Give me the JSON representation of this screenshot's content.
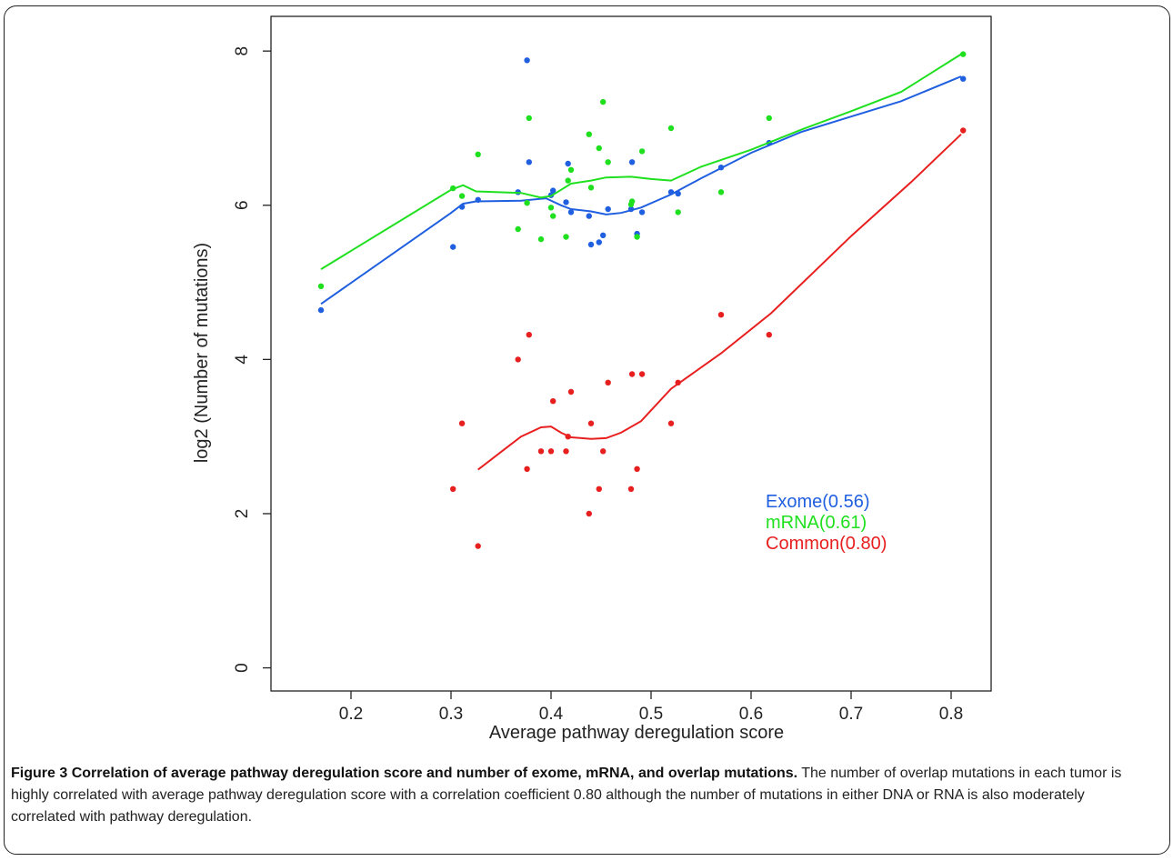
{
  "caption": {
    "label": "Figure 3",
    "title": "Correlation of average pathway deregulation score and number of exome, mRNA, and overlap mutations.",
    "text": "The number of overlap mutations in each tumor is highly correlated with average pathway deregulation score with a correlation coefficient 0.80 although the number of mutations in either DNA or RNA is also moderately correlated with pathway deregulation."
  },
  "chart_data": {
    "type": "scatter",
    "xlabel": "Average pathway deregulation score",
    "ylabel": "log2 (Number of mutations)",
    "xlim": [
      0.12,
      0.84
    ],
    "ylim": [
      -0.3,
      8.45
    ],
    "xticks": [
      0.2,
      0.3,
      0.4,
      0.5,
      0.6,
      0.7,
      0.8
    ],
    "yticks": [
      0,
      2,
      4,
      6,
      8
    ],
    "legend_position": "lower-right",
    "series": [
      {
        "name": "Exome(0.56)",
        "color": "#1f5fe0",
        "points": [
          [
            0.17,
            4.64
          ],
          [
            0.302,
            5.46
          ],
          [
            0.311,
            5.98
          ],
          [
            0.327,
            6.07
          ],
          [
            0.367,
            6.17
          ],
          [
            0.376,
            7.88
          ],
          [
            0.378,
            6.56
          ],
          [
            0.4,
            6.13
          ],
          [
            0.402,
            6.19
          ],
          [
            0.415,
            6.04
          ],
          [
            0.417,
            6.54
          ],
          [
            0.42,
            5.91
          ],
          [
            0.438,
            5.86
          ],
          [
            0.44,
            5.49
          ],
          [
            0.448,
            5.52
          ],
          [
            0.452,
            5.61
          ],
          [
            0.457,
            5.95
          ],
          [
            0.48,
            5.95
          ],
          [
            0.481,
            6.56
          ],
          [
            0.486,
            5.63
          ],
          [
            0.491,
            5.91
          ],
          [
            0.52,
            6.17
          ],
          [
            0.527,
            6.15
          ],
          [
            0.57,
            6.49
          ],
          [
            0.618,
            6.81
          ],
          [
            0.812,
            7.64
          ]
        ],
        "trend": [
          [
            0.17,
            4.72
          ],
          [
            0.3,
            5.9
          ],
          [
            0.312,
            6.02
          ],
          [
            0.325,
            6.05
          ],
          [
            0.37,
            6.06
          ],
          [
            0.395,
            6.09
          ],
          [
            0.41,
            6.0
          ],
          [
            0.42,
            5.95
          ],
          [
            0.44,
            5.92
          ],
          [
            0.455,
            5.88
          ],
          [
            0.47,
            5.9
          ],
          [
            0.49,
            5.97
          ],
          [
            0.52,
            6.14
          ],
          [
            0.55,
            6.35
          ],
          [
            0.6,
            6.68
          ],
          [
            0.65,
            6.95
          ],
          [
            0.7,
            7.15
          ],
          [
            0.75,
            7.35
          ],
          [
            0.81,
            7.67
          ]
        ]
      },
      {
        "name": "mRNA(0.61)",
        "color": "#1fe01f",
        "points": [
          [
            0.17,
            4.95
          ],
          [
            0.302,
            6.22
          ],
          [
            0.311,
            6.12
          ],
          [
            0.327,
            6.66
          ],
          [
            0.367,
            5.69
          ],
          [
            0.376,
            6.03
          ],
          [
            0.378,
            7.13
          ],
          [
            0.39,
            5.56
          ],
          [
            0.4,
            5.97
          ],
          [
            0.402,
            5.86
          ],
          [
            0.415,
            5.59
          ],
          [
            0.417,
            6.32
          ],
          [
            0.42,
            6.46
          ],
          [
            0.438,
            6.92
          ],
          [
            0.44,
            6.23
          ],
          [
            0.448,
            6.74
          ],
          [
            0.452,
            7.34
          ],
          [
            0.457,
            6.56
          ],
          [
            0.48,
            6.01
          ],
          [
            0.481,
            6.05
          ],
          [
            0.486,
            5.59
          ],
          [
            0.491,
            6.7
          ],
          [
            0.52,
            7.0
          ],
          [
            0.527,
            5.91
          ],
          [
            0.57,
            6.17
          ],
          [
            0.618,
            7.13
          ],
          [
            0.812,
            7.96
          ]
        ],
        "trend": [
          [
            0.17,
            5.17
          ],
          [
            0.3,
            6.2
          ],
          [
            0.312,
            6.26
          ],
          [
            0.325,
            6.18
          ],
          [
            0.37,
            6.16
          ],
          [
            0.39,
            6.1
          ],
          [
            0.4,
            6.12
          ],
          [
            0.41,
            6.2
          ],
          [
            0.42,
            6.28
          ],
          [
            0.44,
            6.32
          ],
          [
            0.455,
            6.36
          ],
          [
            0.48,
            6.37
          ],
          [
            0.5,
            6.34
          ],
          [
            0.52,
            6.32
          ],
          [
            0.55,
            6.5
          ],
          [
            0.6,
            6.72
          ],
          [
            0.65,
            6.98
          ],
          [
            0.7,
            7.22
          ],
          [
            0.75,
            7.47
          ],
          [
            0.81,
            7.96
          ]
        ]
      },
      {
        "name": "Common(0.80)",
        "color": "#e81f1f",
        "points": [
          [
            0.302,
            2.32
          ],
          [
            0.311,
            3.17
          ],
          [
            0.327,
            1.58
          ],
          [
            0.367,
            4.0
          ],
          [
            0.376,
            2.58
          ],
          [
            0.378,
            4.32
          ],
          [
            0.39,
            2.81
          ],
          [
            0.4,
            2.81
          ],
          [
            0.402,
            3.46
          ],
          [
            0.415,
            2.81
          ],
          [
            0.417,
            3.0
          ],
          [
            0.42,
            3.58
          ],
          [
            0.438,
            2.0
          ],
          [
            0.44,
            3.17
          ],
          [
            0.448,
            2.32
          ],
          [
            0.452,
            2.81
          ],
          [
            0.457,
            3.7
          ],
          [
            0.48,
            2.32
          ],
          [
            0.481,
            3.81
          ],
          [
            0.486,
            2.58
          ],
          [
            0.491,
            3.81
          ],
          [
            0.52,
            3.17
          ],
          [
            0.527,
            3.7
          ],
          [
            0.57,
            4.58
          ],
          [
            0.618,
            4.32
          ],
          [
            0.812,
            6.97
          ]
        ],
        "trend": [
          [
            0.327,
            2.57
          ],
          [
            0.35,
            2.8
          ],
          [
            0.37,
            3.0
          ],
          [
            0.39,
            3.12
          ],
          [
            0.4,
            3.13
          ],
          [
            0.41,
            3.05
          ],
          [
            0.42,
            2.99
          ],
          [
            0.44,
            2.97
          ],
          [
            0.455,
            2.98
          ],
          [
            0.47,
            3.05
          ],
          [
            0.49,
            3.2
          ],
          [
            0.52,
            3.62
          ],
          [
            0.57,
            4.08
          ],
          [
            0.62,
            4.6
          ],
          [
            0.7,
            5.6
          ],
          [
            0.76,
            6.3
          ],
          [
            0.81,
            6.92
          ]
        ]
      }
    ]
  }
}
